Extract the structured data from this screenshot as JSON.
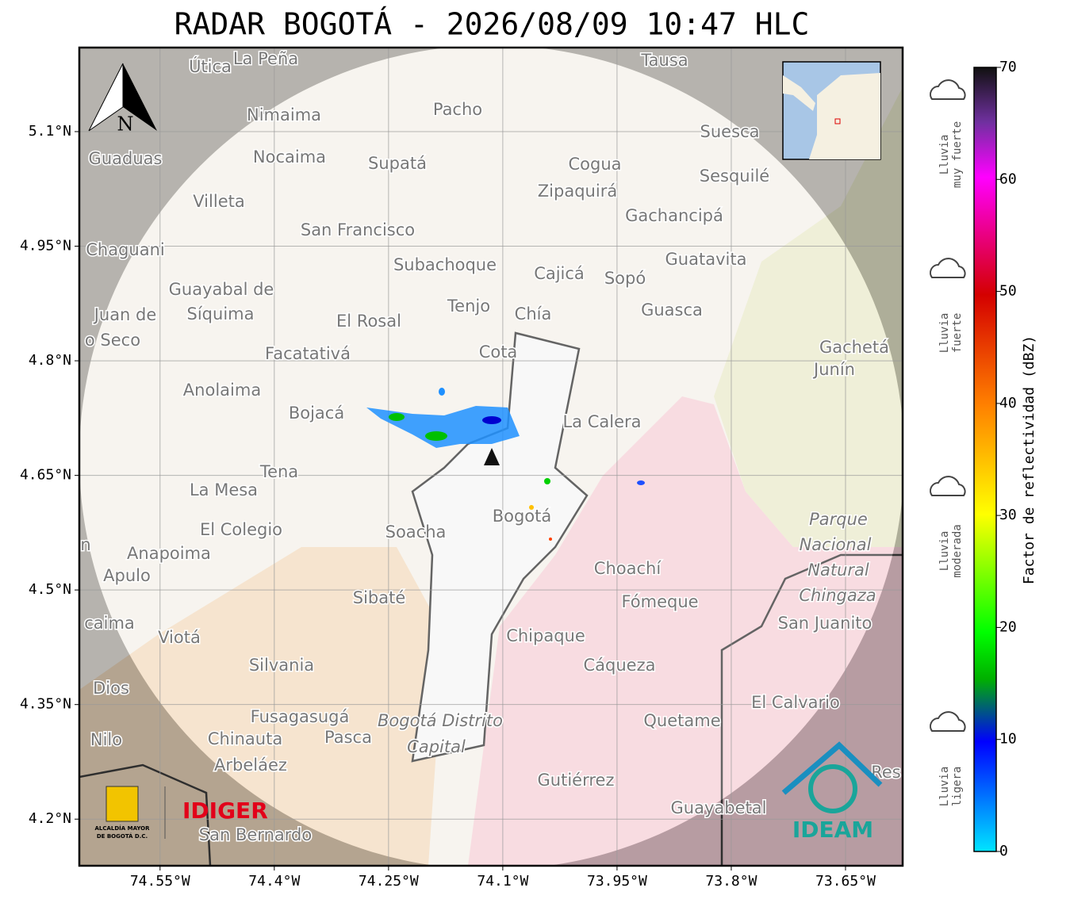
{
  "title": "RADAR BOGOTÁ - 2026/08/09 10:47 HLC",
  "north": "N",
  "xlim": [
    -74.656,
    -73.575
  ],
  "ylim": [
    4.139,
    5.21
  ],
  "xticks": [
    {
      "value": -74.55,
      "label": "74.55°W"
    },
    {
      "value": -74.4,
      "label": "74.4°W"
    },
    {
      "value": -74.25,
      "label": "74.25°W"
    },
    {
      "value": -74.1,
      "label": "74.1°W"
    },
    {
      "value": -73.95,
      "label": "73.95°W"
    },
    {
      "value": -73.8,
      "label": "73.8°W"
    },
    {
      "value": -73.65,
      "label": "73.65°W"
    }
  ],
  "yticks": [
    {
      "value": 5.1,
      "label": "5.1°N"
    },
    {
      "value": 4.95,
      "label": "4.95°N"
    },
    {
      "value": 4.8,
      "label": "4.8°N"
    },
    {
      "value": 4.65,
      "label": "4.65°N"
    },
    {
      "value": 4.5,
      "label": "4.5°N"
    },
    {
      "value": 4.35,
      "label": "4.35°N"
    },
    {
      "value": 4.2,
      "label": "4.2°N"
    }
  ],
  "grid": true,
  "places": [
    "Útica",
    "La Peña",
    "Tausa",
    "Pacho",
    "Nimaima",
    "Guaduas",
    "Nocaima",
    "Supatá",
    "Cogua",
    "Suesca",
    "Sesquilé",
    "Zipaquirá",
    "Villeta",
    "Gachancipá",
    "San Francisco",
    "Chaguani",
    "Guatavita",
    "Subachoque",
    "Cajicá",
    "Sopó",
    "Guayabal de",
    "Síquima",
    "Juan de",
    "Tenjo",
    "El Rosal",
    "Chía",
    "Guasca",
    "o Seco",
    "Facatativá",
    "Cota",
    "Gachetá",
    "Junín",
    "Anolaima",
    "Bojacá",
    "La Calera",
    "Tena",
    "La Mesa",
    "Bogotá",
    "Parque",
    "Nacional",
    "Natural",
    "Chingaza",
    "El Colegio",
    "Soacha",
    "Anapoima",
    "Apulo",
    "Choachí",
    "Fómeque",
    "San Juanito",
    "Sibaté",
    "caima",
    "Viotá",
    "Chipaque",
    "Silvania",
    "Cáqueza",
    "Dios",
    "El Calvario",
    "Fusagasugá",
    "Quetame",
    "Bogotá Distrito",
    "Capital",
    "Nilo",
    "Chinauta",
    "Pasca",
    "Arbeláez",
    "Gutiérrez",
    "Guayabetal",
    "San Bernardo",
    "Res",
    "n"
  ],
  "colorbar": {
    "label": "Factor de reflectividad (dBZ)",
    "lim": [
      0,
      70
    ],
    "ticks": [
      0,
      10,
      20,
      30,
      40,
      50,
      60,
      70
    ]
  },
  "rain_legend": [
    [
      "Lluvia",
      "muy fuerte"
    ],
    [
      "Lluvia",
      "fuerte"
    ],
    [
      "Lluvia",
      "moderada"
    ],
    [
      "Lluvia",
      "ligera"
    ]
  ],
  "logos": {
    "alcaldia": [
      "ALCALDÍA MAYOR",
      "DE BOGOTÁ D.C."
    ],
    "idiger": "IDIGER",
    "ideam": "IDEAM"
  }
}
